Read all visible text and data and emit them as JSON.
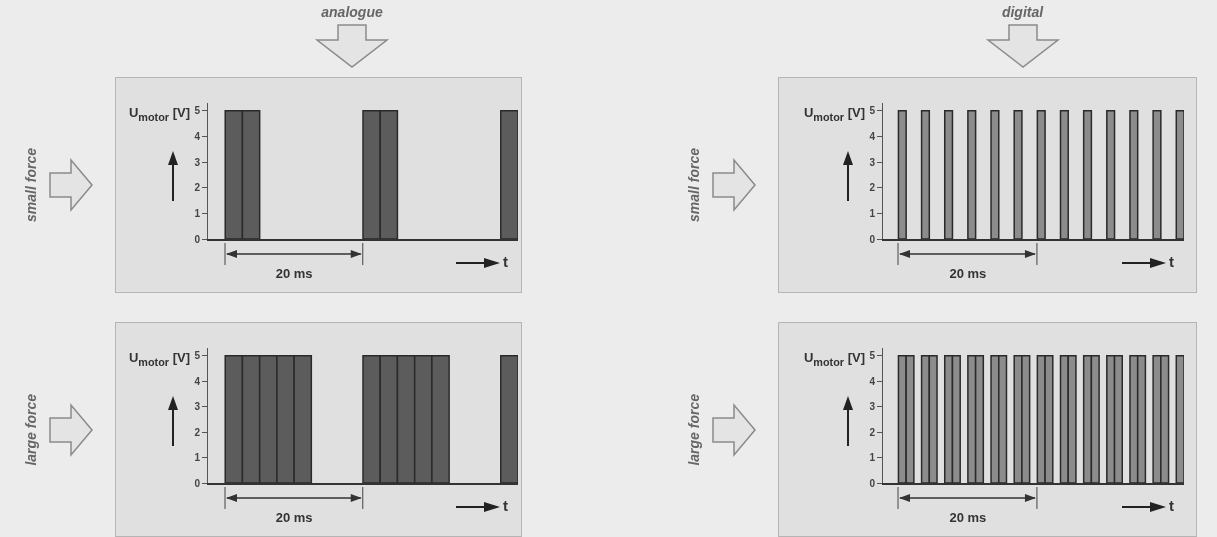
{
  "chart_data": [
    {
      "type": "bar",
      "title": "analogue",
      "ylabel": "U$_{motor}$ [V]",
      "xlabel": "t",
      "annotations": [
        "20 ms",
        "small force"
      ],
      "categories": [
        null,
        null,
        null,
        null,
        null,
        null,
        null,
        null,
        null,
        null,
        null,
        null,
        null,
        null,
        null,
        null,
        null,
        null
      ],
      "values": [
        0,
        5,
        5,
        0,
        0,
        0,
        0,
        0,
        0,
        5,
        5,
        0,
        0,
        0,
        0,
        0,
        0,
        5
      ],
      "color": "#5c5c5c",
      "ylim": [
        0,
        5.3
      ],
      "yticks": [
        0,
        1,
        2,
        3,
        4,
        5
      ]
    },
    {
      "type": "bar",
      "title": "digital",
      "ylabel": "U$_{motor}$ [V]",
      "xlabel": "t",
      "annotations": [
        "20 ms",
        "small force"
      ],
      "categories": [
        null,
        null,
        null,
        null,
        null,
        null,
        null,
        null,
        null,
        null,
        null,
        null,
        null,
        null,
        null,
        null,
        null,
        null,
        null,
        null,
        null,
        null,
        null,
        null,
        null,
        null,
        null,
        null,
        null,
        null,
        null,
        null,
        null,
        null,
        null,
        null,
        null,
        null,
        null
      ],
      "values": [
        0,
        0,
        5,
        0,
        0,
        5,
        0,
        0,
        5,
        0,
        0,
        5,
        0,
        0,
        5,
        0,
        0,
        5,
        0,
        0,
        5,
        0,
        0,
        5,
        0,
        0,
        5,
        0,
        0,
        5,
        0,
        0,
        5,
        0,
        0,
        5,
        0,
        0,
        5
      ],
      "color": "#8c8c8c",
      "ylim": [
        0,
        5.3
      ],
      "yticks": [
        0,
        1,
        2,
        3,
        4,
        5
      ]
    },
    {
      "type": "bar",
      "ylabel": "U$_{motor}$ [V]",
      "xlabel": "t",
      "annotations": [
        "20 ms",
        "large force"
      ],
      "categories": [
        null,
        null,
        null,
        null,
        null,
        null,
        null,
        null,
        null,
        null,
        null,
        null,
        null,
        null,
        null,
        null,
        null,
        null
      ],
      "values": [
        0,
        5,
        5,
        5,
        5,
        5,
        0,
        0,
        0,
        5,
        5,
        5,
        5,
        5,
        0,
        0,
        0,
        5
      ],
      "color": "#5c5c5c",
      "ylim": [
        0,
        5.3
      ],
      "yticks": [
        0,
        1,
        2,
        3,
        4,
        5
      ]
    },
    {
      "type": "bar",
      "ylabel": "U$_{motor}$ [V]",
      "xlabel": "t",
      "annotations": [
        "20 ms",
        "large force"
      ],
      "categories": [
        null,
        null,
        null,
        null,
        null,
        null,
        null,
        null,
        null,
        null,
        null,
        null,
        null,
        null,
        null,
        null,
        null,
        null,
        null,
        null,
        null,
        null,
        null,
        null,
        null,
        null,
        null,
        null,
        null,
        null,
        null,
        null,
        null,
        null,
        null,
        null,
        null,
        null,
        null
      ],
      "values": [
        0,
        0,
        5,
        5,
        0,
        5,
        5,
        0,
        5,
        5,
        0,
        5,
        5,
        0,
        5,
        5,
        0,
        5,
        5,
        0,
        5,
        5,
        0,
        5,
        5,
        0,
        5,
        5,
        0,
        5,
        5,
        0,
        5,
        5,
        0,
        5,
        5,
        0,
        5
      ],
      "color": "#8c8c8c",
      "ylim": [
        0,
        5.3
      ],
      "yticks": [
        0,
        1,
        2,
        3,
        4,
        5
      ]
    }
  ]
}
